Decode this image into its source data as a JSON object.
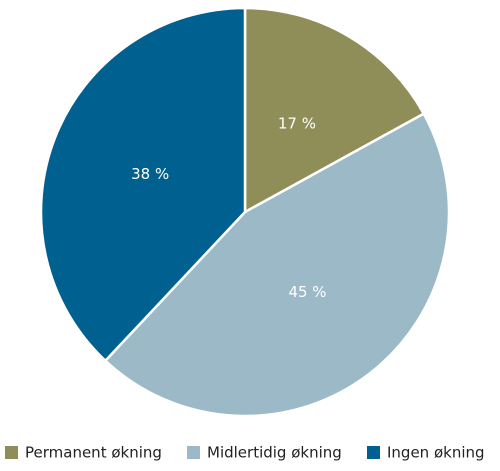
{
  "chart_data": {
    "type": "pie",
    "categories": [
      "Permanent økning",
      "Midlertidig økning",
      "Ingen økning"
    ],
    "values": [
      17,
      45,
      38
    ],
    "value_labels": [
      "17 %",
      "45 %",
      "38 %"
    ],
    "colors": [
      "#8f8d58",
      "#9bb9c6",
      "#00608f"
    ],
    "legend": "bottom"
  }
}
